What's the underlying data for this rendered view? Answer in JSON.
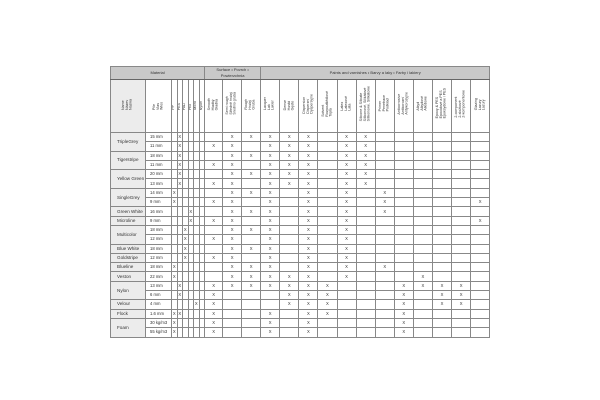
{
  "mark_symbol": "X",
  "groups": [
    {
      "label": "Material",
      "span": 8
    },
    {
      "label": "Surface • Povrch • Powierzchnia",
      "span": 3
    },
    {
      "label": "Paints and varnishes • Barvy a laky • Farby i lakiery",
      "span": 12
    }
  ],
  "name_header": "Name\nNázev\nNazwa",
  "size_header": "Pile\nVlas\nWłos",
  "columns": [
    "PP",
    "PES",
    "PAD",
    "PBT",
    "Micro",
    "Nylon",
    "Smooth\nHladký\nGładka",
    "Semi rough\nStředně hrubý\nŚrednio gruba",
    "Rough\nHrubý\nGruba",
    "Lacquer\nLak\nLakier",
    "Dense\nHustá\nGęste",
    "Dispersion\nDisperzní\nDyspersyjne",
    "Solvent\nRozpouštědlové\nTopla",
    "Latex\nLatexové\nLata",
    "Silicone & Silicate\nSilikonové, Silikátové\nSilikonowe, Silikatowe",
    "Primer\nPenetrace\nPodkład",
    "Anticorrosive\nAntikorozní\nAntykorozyjne",
    "Alkyd\nAlkydové\nAlkidowe",
    "Epoxy & PES\nEpoxidové a PES\nEpoksydowe i PES",
    "2-component\n2-složkové\n2-komponentowe",
    "Glazing\nLazury\nLazury"
  ],
  "products": [
    {
      "name": "TripleGrey",
      "variants": [
        {
          "size": "15 mm",
          "marks": [
            1,
            7,
            8,
            9,
            10,
            11,
            13,
            14
          ]
        },
        {
          "size": "11 mm",
          "marks": [
            1,
            6,
            7,
            9,
            10,
            11,
            13,
            14
          ]
        }
      ]
    },
    {
      "name": "Tigerstripe",
      "variants": [
        {
          "size": "18 mm",
          "marks": [
            1,
            7,
            8,
            9,
            10,
            11,
            13,
            14
          ]
        },
        {
          "size": "11 mm",
          "marks": [
            1,
            6,
            7,
            9,
            10,
            11,
            13,
            14
          ]
        }
      ]
    },
    {
      "name": "Yellow Green",
      "variants": [
        {
          "size": "20 mm",
          "marks": [
            1,
            7,
            8,
            9,
            10,
            11,
            13,
            14
          ]
        },
        {
          "size": "13 mm",
          "marks": [
            1,
            6,
            7,
            9,
            10,
            11,
            13,
            14
          ]
        }
      ]
    },
    {
      "name": "SingleGrey",
      "variants": [
        {
          "size": "14 mm",
          "marks": [
            0,
            7,
            8,
            9,
            11,
            13,
            15
          ]
        },
        {
          "size": "9 mm",
          "marks": [
            0,
            6,
            7,
            9,
            11,
            13,
            15,
            20
          ]
        }
      ]
    },
    {
      "name": "Green White",
      "variants": [
        {
          "size": "16 mm",
          "marks": [
            3,
            7,
            8,
            9,
            11,
            13,
            15
          ]
        }
      ]
    },
    {
      "name": "Microline",
      "variants": [
        {
          "size": "9 mm",
          "marks": [
            3,
            6,
            7,
            9,
            11,
            13,
            20
          ]
        }
      ]
    },
    {
      "name": "Multicolor",
      "variants": [
        {
          "size": "18 mm",
          "marks": [
            2,
            7,
            8,
            9,
            11,
            13
          ]
        },
        {
          "size": "12 mm",
          "marks": [
            2,
            6,
            7,
            9,
            11,
            13
          ]
        }
      ]
    },
    {
      "name": "Blue White",
      "variants": [
        {
          "size": "18 mm",
          "marks": [
            2,
            7,
            8,
            9,
            11,
            13
          ]
        }
      ]
    },
    {
      "name": "Goldstripe",
      "variants": [
        {
          "size": "12 mm",
          "marks": [
            2,
            6,
            7,
            9,
            11,
            13
          ]
        }
      ]
    },
    {
      "name": "Blueline",
      "variants": [
        {
          "size": "18 mm",
          "marks": [
            0,
            7,
            8,
            9,
            11,
            13,
            15
          ]
        }
      ]
    },
    {
      "name": "Veston",
      "variants": [
        {
          "size": "22 mm",
          "marks": [
            0,
            7,
            8,
            9,
            10,
            11,
            13,
            17
          ]
        }
      ]
    },
    {
      "name": "Nylon",
      "variants": [
        {
          "size": "13 mm",
          "marks": [
            1,
            6,
            7,
            8,
            9,
            10,
            11,
            12,
            16,
            17,
            18,
            19
          ]
        },
        {
          "size": "6 mm",
          "marks": [
            1,
            6,
            10,
            11,
            12,
            16,
            18,
            19
          ]
        }
      ]
    },
    {
      "name": "Velour",
      "variants": [
        {
          "size": "4 mm",
          "marks": [
            4,
            6,
            10,
            11,
            12,
            16,
            18,
            19
          ]
        }
      ]
    },
    {
      "name": "Flock",
      "variants": [
        {
          "size": "1.6 mm",
          "marks": [
            0,
            1,
            6,
            9,
            11,
            12,
            16
          ]
        }
      ]
    },
    {
      "name": "Foam",
      "variants": [
        {
          "size": "30 kg/m3",
          "marks": [
            0,
            6,
            9,
            11,
            16
          ]
        },
        {
          "size": "55 kg/m3",
          "marks": [
            0,
            6,
            9,
            11,
            16
          ]
        }
      ]
    }
  ]
}
